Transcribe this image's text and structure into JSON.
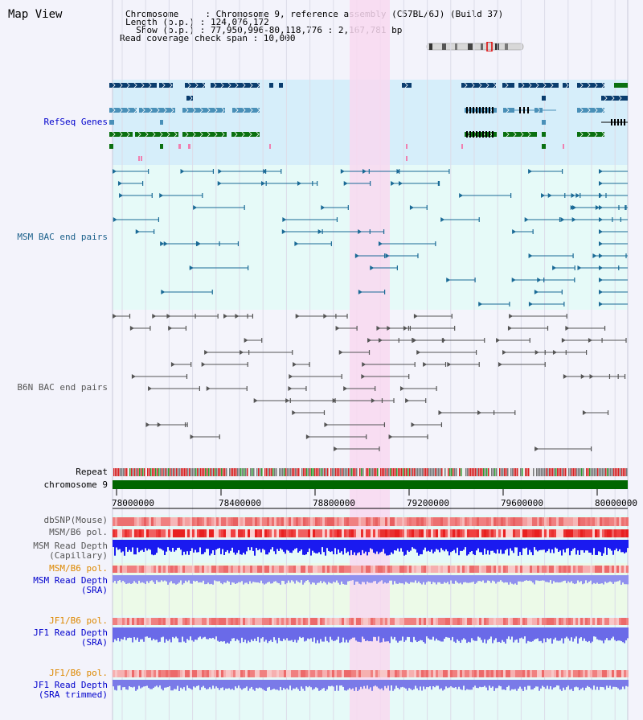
{
  "header": {
    "title": "Map View",
    "chromosome_line": "Chromosome     : Chromosome 9, reference assembly (C57BL/6J) (Build 37)",
    "length_line": "Length (b.p.) : 124,076,172",
    "show_line": "  Show (b.p.) : 77,950,996-80,118,776 : 2,167,781 bp",
    "coverage_line": "Read coverage check span : 10,000"
  },
  "tracks": {
    "refseq": "RefSeq Genes",
    "msm_bac": "MSM BAC end pairs",
    "b6n_bac": "B6N BAC end pairs",
    "repeat": "Repeat",
    "chromosome": "chromosome 9",
    "dbsnp": "dbSNP(Mouse)",
    "msm_b6_pol_1": "MSM/B6 pol.",
    "msm_depth_cap_1": "MSM Read Depth",
    "msm_depth_cap_2": "(Capillary)",
    "msm_b6_pol_2": "MSM/B6 pol.",
    "msm_depth_sra_1": "MSM Read Depth",
    "msm_depth_sra_2": "(SRA)",
    "jf1_pol_1": "JF1/B6 pol.",
    "jf1_depth_sra_1": "JF1 Read Depth",
    "jf1_depth_sra_2": "(SRA)",
    "jf1_pol_2": "JF1/B6 pol.",
    "jf1_depth_trim_1": "JF1 Read Depth",
    "jf1_depth_trim_2": "(SRA trimmed)"
  },
  "ruler": {
    "ticks": [
      "78000000",
      "78400000",
      "78800000",
      "79200000",
      "79600000",
      "80000000"
    ]
  },
  "colors": {
    "refseq_bg": "#d6eefa",
    "msm_bg": "#e6faf8",
    "b6n_bg": "#f4f4fb",
    "highlight": "#f8d8f0",
    "gene_navy": "#0a3d6e",
    "gene_teal": "#4a90b8",
    "gene_green": "#0a7010",
    "chromosome_green": "#006600"
  }
}
